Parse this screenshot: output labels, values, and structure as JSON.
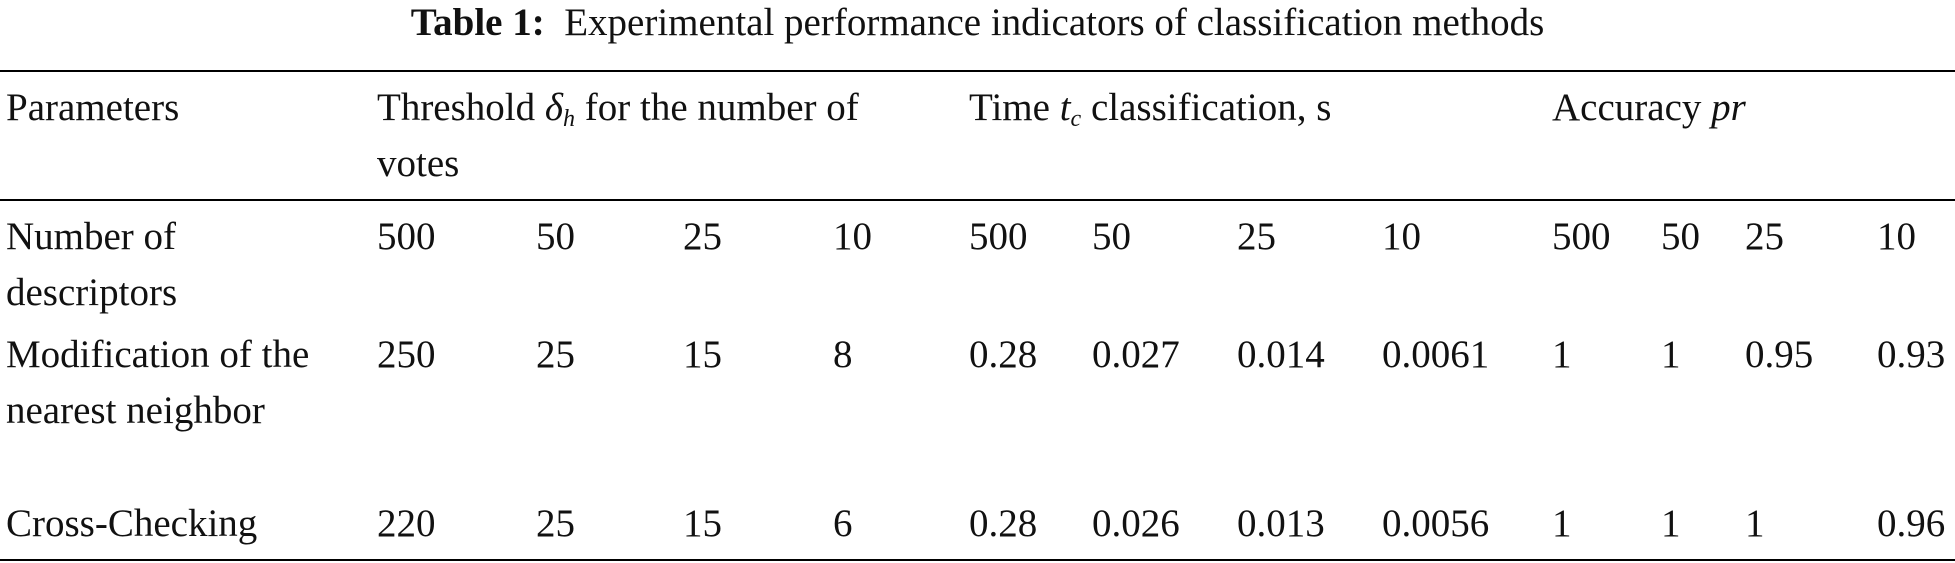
{
  "caption": {
    "label": "Table 1:",
    "text": "Experimental performance indicators of classification methods"
  },
  "table": {
    "header": [
      {
        "text": "Parameters"
      },
      {
        "pre": "Threshold ",
        "symbol": "δ",
        "sub": "h",
        "post": " for the number of votes"
      },
      {
        "pre": "Time ",
        "symbol": "t",
        "sub": "c",
        "post": " classification, s"
      },
      {
        "pre": "Accuracy ",
        "symbol": "pr"
      }
    ],
    "rows": [
      [
        "Number of descriptors",
        500,
        50,
        25,
        10,
        500,
        50,
        25,
        10,
        500,
        50,
        25,
        10
      ],
      [
        "Modification of the nearest neighbor",
        250,
        25,
        15,
        8,
        0.28,
        0.027,
        0.014,
        0.0061,
        1,
        1,
        0.95,
        0.93
      ],
      [
        "Cross-Checking",
        220,
        25,
        15,
        6,
        0.28,
        0.026,
        0.013,
        0.0056,
        1,
        1,
        1,
        0.96
      ]
    ]
  }
}
